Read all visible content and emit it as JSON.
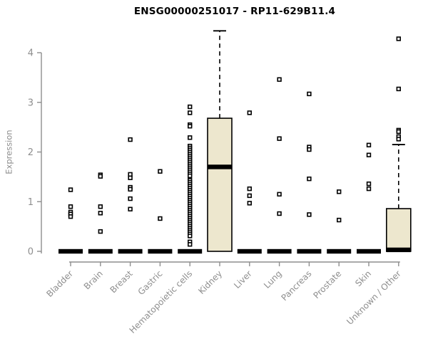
{
  "chart_data": {
    "type": "boxplot",
    "title": "ENSG00000251017 - RP11-629B11.4",
    "ylabel": "Expression",
    "ylim": [
      0,
      4.5
    ],
    "yticks": [
      0,
      1,
      2,
      3,
      4
    ],
    "grid": false,
    "legend": false,
    "categories": [
      "Bladder",
      "Brain",
      "Breast",
      "Gastric",
      "Hematopoietic cells",
      "Kidney",
      "Liver",
      "Lung",
      "Pancreas",
      "Prostate",
      "Skin",
      "Unknown / Other"
    ],
    "colors": {
      "box_fill": "#EDE7CE",
      "box_line": "#000000",
      "axis": "#8e8e8e",
      "title": "#000000"
    },
    "groups": [
      {
        "name": "Bladder",
        "box": {
          "q1": 0,
          "median": 0,
          "q3": 0,
          "whisker_low": 0,
          "whisker_high": 0
        },
        "points": [
          1.24,
          0.9,
          0.79,
          0.75,
          0.7
        ]
      },
      {
        "name": "Brain",
        "box": {
          "q1": 0,
          "median": 0,
          "q3": 0,
          "whisker_low": 0,
          "whisker_high": 0
        },
        "points": [
          1.54,
          1.51,
          0.9,
          0.77,
          0.4
        ]
      },
      {
        "name": "Breast",
        "box": {
          "q1": 0,
          "median": 0,
          "q3": 0,
          "whisker_low": 0,
          "whisker_high": 0
        },
        "points": [
          2.25,
          1.55,
          1.48,
          1.29,
          1.25,
          1.06,
          0.85
        ]
      },
      {
        "name": "Gastric",
        "box": {
          "q1": 0,
          "median": 0,
          "q3": 0,
          "whisker_low": 0,
          "whisker_high": 0
        },
        "points": [
          1.61,
          0.66
        ]
      },
      {
        "name": "Hematopoietic cells",
        "box": {
          "q1": 0,
          "median": 0,
          "q3": 0,
          "whisker_low": 0,
          "whisker_high": 0
        },
        "points": [
          2.91,
          2.79,
          2.55,
          2.52,
          2.29,
          2.12,
          2.08,
          2.04,
          2.0,
          1.96,
          1.92,
          1.88,
          1.84,
          1.8,
          1.76,
          1.72,
          1.68,
          1.64,
          1.6,
          1.56,
          1.52,
          1.43,
          1.39,
          1.35,
          1.31,
          1.27,
          1.23,
          1.19,
          1.15,
          1.11,
          1.07,
          1.03,
          0.99,
          0.95,
          0.91,
          0.87,
          0.83,
          0.79,
          0.75,
          0.71,
          0.67,
          0.63,
          0.59,
          0.55,
          0.51,
          0.47,
          0.43,
          0.39,
          0.35,
          0.31,
          0.19,
          0.14
        ]
      },
      {
        "name": "Kidney",
        "box": {
          "q1": 0,
          "median": 1.7,
          "q3": 2.68,
          "whisker_low": 0,
          "whisker_high": 4.44
        },
        "points": []
      },
      {
        "name": "Liver",
        "box": {
          "q1": 0,
          "median": 0,
          "q3": 0,
          "whisker_low": 0,
          "whisker_high": 0
        },
        "points": [
          2.79,
          1.26,
          1.12,
          0.97
        ]
      },
      {
        "name": "Lung",
        "box": {
          "q1": 0,
          "median": 0,
          "q3": 0,
          "whisker_low": 0,
          "whisker_high": 0
        },
        "points": [
          3.46,
          2.27,
          1.15,
          0.76
        ]
      },
      {
        "name": "Pancreas",
        "box": {
          "q1": 0,
          "median": 0,
          "q3": 0,
          "whisker_low": 0,
          "whisker_high": 0
        },
        "points": [
          3.17,
          2.1,
          2.05,
          1.46,
          0.74
        ]
      },
      {
        "name": "Prostate",
        "box": {
          "q1": 0,
          "median": 0,
          "q3": 0,
          "whisker_low": 0,
          "whisker_high": 0
        },
        "points": [
          1.2,
          0.63
        ]
      },
      {
        "name": "Skin",
        "box": {
          "q1": 0,
          "median": 0,
          "q3": 0,
          "whisker_low": 0,
          "whisker_high": 0
        },
        "points": [
          2.14,
          1.94,
          1.36,
          1.26
        ]
      },
      {
        "name": "Unknown / Other",
        "box": {
          "q1": 0,
          "median": 0.03,
          "q3": 0.86,
          "whisker_low": 0,
          "whisker_high": 2.15
        },
        "points": [
          4.28,
          3.27,
          2.44,
          2.41,
          2.31,
          2.26
        ]
      }
    ]
  }
}
